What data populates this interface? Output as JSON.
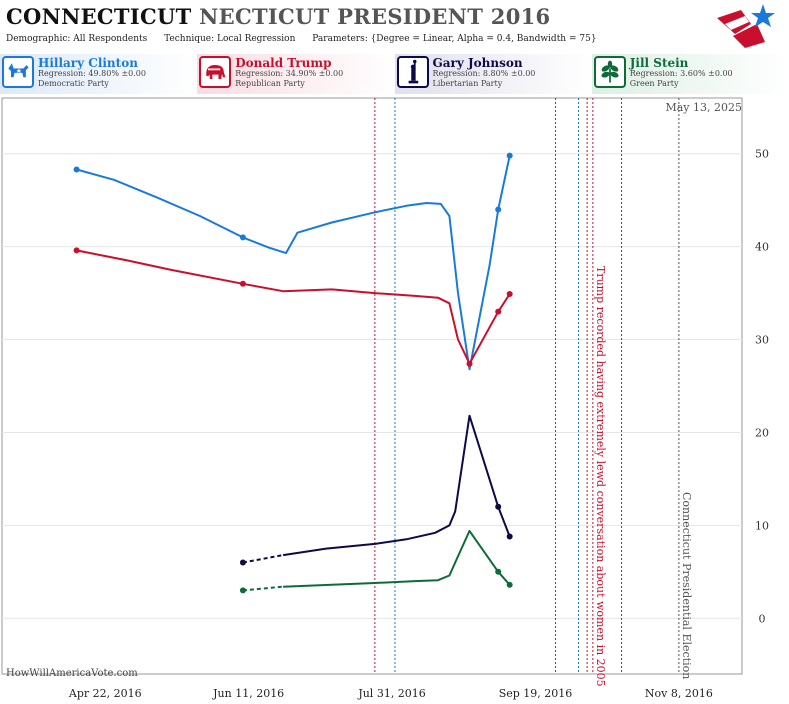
{
  "header": {
    "state": "CONNECTICUT",
    "title_rest": "NECTICUT PRESIDENT 2016",
    "demographic": "Demographic: All Respondents",
    "technique": "Technique: Local Regression",
    "parameters": "Parameters: {Degree = Linear, Alpha = 0.4, Bandwidth = 75}"
  },
  "candidates": [
    {
      "name": "Hillary Clinton",
      "regression": "Regression: 49.80% ±0.00",
      "party": "Democratic Party",
      "color": "#1a7ad9",
      "bg": "#dde9f8",
      "icon": "donkey-icon"
    },
    {
      "name": "Donald Trump",
      "regression": "Regression: 34.90% ±0.00",
      "party": "Republican Party",
      "color": "#c8102e",
      "bg": "#f8dde2",
      "icon": "elephant-icon"
    },
    {
      "name": "Gary Johnson",
      "regression": "Regression: 8.80% ±0.00",
      "party": "Libertarian Party",
      "color": "#0d0a48",
      "bg": "#e1e0ec",
      "icon": "liberty-statue-icon"
    },
    {
      "name": "Jill Stein",
      "regression": "Regression: 3.60% ±0.00",
      "party": "Green Party",
      "color": "#0d6b3a",
      "bg": "#ddefe5",
      "icon": "leaf-icon"
    }
  ],
  "watermark": "HowWillAmericaVote.com",
  "chart_data": {
    "type": "line",
    "date_label": "May 13, 2025",
    "x_tick_labels": [
      "Apr 22, 2016",
      "Jun 11, 2016",
      "Jul 31, 2016",
      "Sep 19, 2016",
      "Nov 8, 2016"
    ],
    "x_range": [
      "2016-03-17",
      "2016-11-30"
    ],
    "y_ticks": [
      0,
      10,
      20,
      30,
      40,
      50
    ],
    "ylim": [
      -6,
      56
    ],
    "grid": "horizontal",
    "series": [
      {
        "name": "Hillary Clinton",
        "color": "#1a7ad9",
        "points": [
          [
            "2016-04-12",
            48.3
          ],
          [
            "2016-04-25",
            47.2
          ],
          [
            "2016-05-10",
            45.3
          ],
          [
            "2016-05-25",
            43.3
          ],
          [
            "2016-06-09",
            41.0
          ],
          [
            "2016-06-18",
            39.9
          ],
          [
            "2016-06-24",
            39.3
          ],
          [
            "2016-06-28",
            41.5
          ],
          [
            "2016-07-10",
            42.6
          ],
          [
            "2016-07-25",
            43.7
          ],
          [
            "2016-08-05",
            44.4
          ],
          [
            "2016-08-12",
            44.7
          ],
          [
            "2016-08-17",
            44.6
          ],
          [
            "2016-08-20",
            43.3
          ],
          [
            "2016-08-23",
            35.0
          ],
          [
            "2016-08-27",
            26.8
          ],
          [
            "2016-09-03",
            38.0
          ],
          [
            "2016-09-06",
            44.0
          ],
          [
            "2016-09-10",
            49.8
          ]
        ],
        "dashed_to": null,
        "markers": [
          [
            "2016-04-12",
            48.3
          ],
          [
            "2016-06-09",
            41.0
          ],
          [
            "2016-09-06",
            44.0
          ],
          [
            "2016-09-10",
            49.8
          ]
        ]
      },
      {
        "name": "Donald Trump",
        "color": "#c8102e",
        "points": [
          [
            "2016-04-12",
            39.6
          ],
          [
            "2016-04-30",
            38.5
          ],
          [
            "2016-05-15",
            37.5
          ],
          [
            "2016-06-09",
            36.0
          ],
          [
            "2016-06-23",
            35.2
          ],
          [
            "2016-07-10",
            35.4
          ],
          [
            "2016-07-25",
            35.0
          ],
          [
            "2016-08-08",
            34.7
          ],
          [
            "2016-08-16",
            34.5
          ],
          [
            "2016-08-20",
            33.9
          ],
          [
            "2016-08-23",
            30.0
          ],
          [
            "2016-08-27",
            27.4
          ],
          [
            "2016-09-06",
            33.0
          ],
          [
            "2016-09-10",
            34.9
          ]
        ],
        "dashed_to": null,
        "markers": [
          [
            "2016-04-12",
            39.6
          ],
          [
            "2016-06-09",
            36.0
          ],
          [
            "2016-08-27",
            27.4
          ],
          [
            "2016-09-06",
            33.0
          ],
          [
            "2016-09-10",
            34.9
          ]
        ]
      },
      {
        "name": "Gary Johnson",
        "color": "#0d0a48",
        "points": [
          [
            "2016-06-09",
            6.0
          ],
          [
            "2016-06-23",
            6.8
          ],
          [
            "2016-07-08",
            7.5
          ],
          [
            "2016-07-25",
            8.0
          ],
          [
            "2016-08-05",
            8.5
          ],
          [
            "2016-08-15",
            9.2
          ],
          [
            "2016-08-20",
            10.0
          ],
          [
            "2016-08-22",
            11.5
          ],
          [
            "2016-08-27",
            21.8
          ],
          [
            "2016-09-06",
            12.0
          ],
          [
            "2016-09-10",
            8.8
          ]
        ],
        "dashed_to": [
          "2016-06-23",
          6.8
        ],
        "markers": [
          [
            "2016-06-09",
            6.0
          ],
          [
            "2016-09-06",
            12.0
          ],
          [
            "2016-09-10",
            8.8
          ]
        ]
      },
      {
        "name": "Jill Stein",
        "color": "#0d6b3a",
        "points": [
          [
            "2016-06-09",
            3.0
          ],
          [
            "2016-06-23",
            3.4
          ],
          [
            "2016-07-10",
            3.6
          ],
          [
            "2016-07-25",
            3.8
          ],
          [
            "2016-08-08",
            4.0
          ],
          [
            "2016-08-16",
            4.1
          ],
          [
            "2016-08-20",
            4.6
          ],
          [
            "2016-08-22",
            6.0
          ],
          [
            "2016-08-27",
            9.4
          ],
          [
            "2016-09-06",
            5.0
          ],
          [
            "2016-09-10",
            3.6
          ]
        ],
        "dashed_to": [
          "2016-06-23",
          3.4
        ],
        "markers": [
          [
            "2016-06-09",
            3.0
          ],
          [
            "2016-09-06",
            5.0
          ],
          [
            "2016-09-10",
            3.6
          ]
        ]
      }
    ],
    "vertical_markers": [
      {
        "date": "2016-07-25",
        "color": "#c8102e"
      },
      {
        "date": "2016-08-01",
        "color": "#1a7ad9"
      },
      {
        "date": "2016-09-26",
        "color": "#c8102e"
      },
      {
        "date": "2016-10-04",
        "color": "#1a7ad9"
      },
      {
        "date": "2016-10-07",
        "color": "#c8102e"
      },
      {
        "date": "2016-10-09",
        "color": "#c8102e"
      },
      {
        "date": "2016-10-19",
        "color": "#c8102e"
      },
      {
        "date": "2016-11-08",
        "color": "#555555"
      }
    ],
    "annotations": [
      {
        "text": "Trump recorded having extremely lewd conversation about women in 2005",
        "date": "2016-10-09",
        "color": "#c8102e"
      },
      {
        "text": "Connecticut Presidential Election",
        "date": "2016-11-08",
        "color": "#555555"
      }
    ]
  }
}
